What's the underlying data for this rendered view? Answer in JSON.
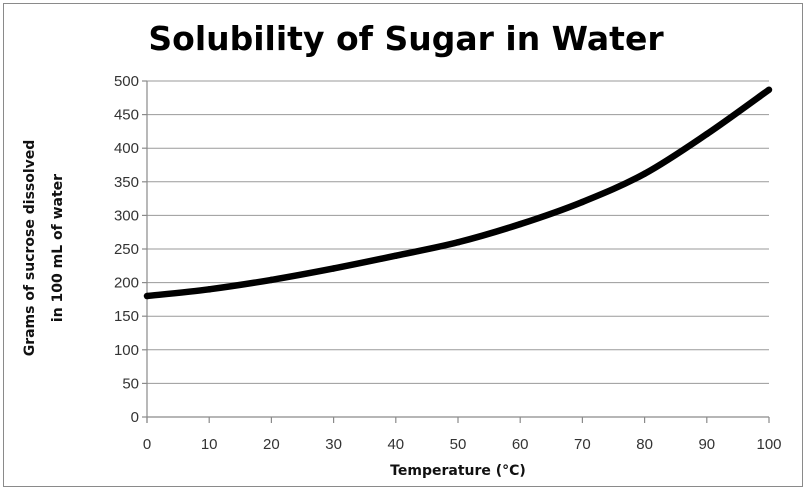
{
  "chart_data": {
    "type": "line",
    "title": "Solubility of Sugar in Water",
    "xlabel": "Temperature (°C)",
    "ylabel_lines": [
      "Grams of sucrose dissolved",
      "in 100 mL of water"
    ],
    "xlim": [
      0,
      100
    ],
    "ylim": [
      0,
      500
    ],
    "x_ticks": [
      0,
      10,
      20,
      30,
      40,
      50,
      60,
      70,
      80,
      90,
      100
    ],
    "y_ticks": [
      0,
      50,
      100,
      150,
      200,
      250,
      300,
      350,
      400,
      450,
      500
    ],
    "grid": true,
    "series": [
      {
        "name": "Solubility",
        "color": "#000000",
        "x": [
          0,
          10,
          20,
          30,
          40,
          50,
          60,
          70,
          80,
          90,
          100
        ],
        "y": [
          180,
          190,
          204,
          221,
          240,
          260,
          287,
          320,
          362,
          421,
          487
        ]
      }
    ]
  }
}
